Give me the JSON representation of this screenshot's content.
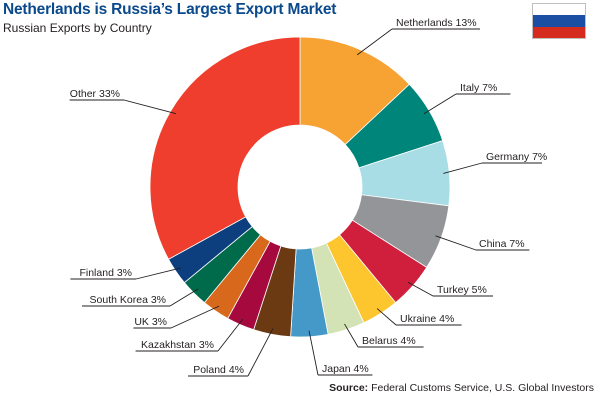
{
  "header": {
    "title": "Netherlands is Russia’s Largest Export Market",
    "subtitle": "Russian Exports by Country"
  },
  "flag": {
    "icon": "russia-flag-icon",
    "colors": [
      "#ffffff",
      "#1a4fa3",
      "#d52b1e"
    ]
  },
  "source": {
    "label": "Source:",
    "text": "Federal Customs Service, U.S. Global Investors"
  },
  "chart_data": {
    "type": "pie",
    "donut": true,
    "title": "Netherlands is Russia’s Largest Export Market",
    "subtitle": "Russian Exports by Country",
    "slices": [
      {
        "name": "Netherlands",
        "label": "Netherlands 13%",
        "value": 13,
        "color": "#f6a333"
      },
      {
        "name": "Italy",
        "label": "Italy  7%",
        "value": 7,
        "color": "#00857a"
      },
      {
        "name": "Germany",
        "label": "Germany 7%",
        "value": 7,
        "color": "#a8dde6"
      },
      {
        "name": "China",
        "label": "China  7%",
        "value": 7,
        "color": "#939598"
      },
      {
        "name": "Turkey",
        "label": "Turkey  5%",
        "value": 5,
        "color": "#cf1f3d"
      },
      {
        "name": "Ukraine",
        "label": "Ukraine  4%",
        "value": 4,
        "color": "#fdc62f"
      },
      {
        "name": "Belarus",
        "label": "Belarus  4%",
        "value": 4,
        "color": "#d4e3b5"
      },
      {
        "name": "Japan",
        "label": "Japan  4%",
        "value": 4,
        "color": "#4499c9"
      },
      {
        "name": "Poland",
        "label": "Poland  4%",
        "value": 4,
        "color": "#6b3a12"
      },
      {
        "name": "Kazakhstan",
        "label": "Kazakhstan  3%",
        "value": 3,
        "color": "#a6093d"
      },
      {
        "name": "UK",
        "label": "UK  3%",
        "value": 3,
        "color": "#d8691c"
      },
      {
        "name": "South Korea",
        "label": "South Korea  3%",
        "value": 3,
        "color": "#006b4a"
      },
      {
        "name": "Finland",
        "label": "Finland  3%",
        "value": 3,
        "color": "#0d3f7e"
      },
      {
        "name": "Other",
        "label": "Other 33%",
        "value": 33,
        "color": "#ef3e2d"
      }
    ]
  }
}
